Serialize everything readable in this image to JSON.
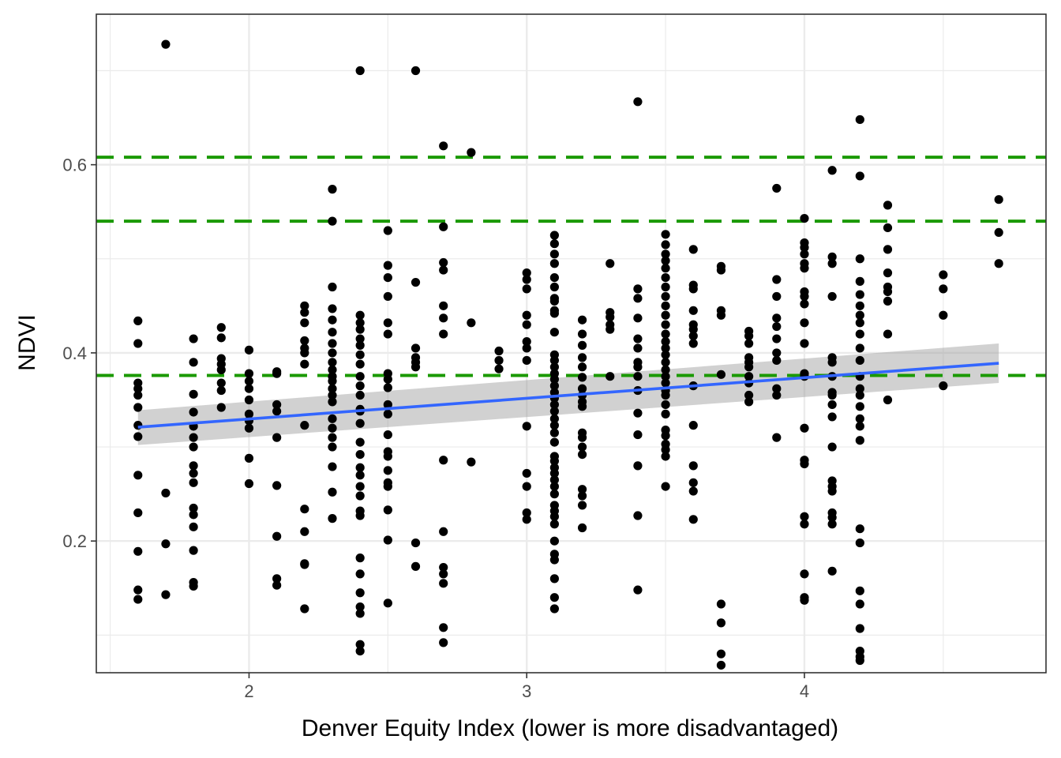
{
  "chart_data": {
    "type": "scatter",
    "title": "",
    "xlabel": "Denver Equity Index (lower is more disadvantaged)",
    "ylabel": "NDVI",
    "xlim": [
      1.45,
      4.87
    ],
    "ylim": [
      0.06,
      0.76
    ],
    "x_ticks": [
      2,
      3,
      4
    ],
    "x_tick_labels": [
      "2",
      "3",
      "4"
    ],
    "y_ticks": [
      0.2,
      0.4,
      0.6
    ],
    "y_tick_labels": [
      "0.2",
      "0.4",
      "0.6"
    ],
    "x_minor": [
      1.5,
      2.5,
      3.5,
      4.5
    ],
    "y_minor": [
      0.1,
      0.3,
      0.5,
      0.7
    ],
    "grid": true,
    "legend": "none",
    "colors": {
      "points": "#000000",
      "fit_line": "#3366ff",
      "ribbon": "#999999",
      "hlines": "#1a9900",
      "grid": "#ebebeb",
      "panel_border": "#333333"
    },
    "hlines": [
      0.608,
      0.54,
      0.376
    ],
    "fit": {
      "x": [
        1.6,
        4.7
      ],
      "y": [
        0.321,
        0.389
      ],
      "se_lower": [
        0.302,
        0.368
      ],
      "se_upper": [
        0.339,
        0.41
      ]
    },
    "points": [
      [
        1.6,
        0.434
      ],
      [
        1.6,
        0.41
      ],
      [
        1.6,
        0.368
      ],
      [
        1.6,
        0.362
      ],
      [
        1.6,
        0.355
      ],
      [
        1.6,
        0.342
      ],
      [
        1.6,
        0.323
      ],
      [
        1.6,
        0.311
      ],
      [
        1.6,
        0.27
      ],
      [
        1.6,
        0.23
      ],
      [
        1.6,
        0.189
      ],
      [
        1.6,
        0.148
      ],
      [
        1.6,
        0.138
      ],
      [
        1.7,
        0.728
      ],
      [
        1.7,
        0.251
      ],
      [
        1.7,
        0.197
      ],
      [
        1.7,
        0.143
      ],
      [
        1.8,
        0.415
      ],
      [
        1.8,
        0.39
      ],
      [
        1.8,
        0.356
      ],
      [
        1.8,
        0.337
      ],
      [
        1.8,
        0.322
      ],
      [
        1.8,
        0.31
      ],
      [
        1.8,
        0.3
      ],
      [
        1.8,
        0.28
      ],
      [
        1.8,
        0.272
      ],
      [
        1.8,
        0.262
      ],
      [
        1.8,
        0.235
      ],
      [
        1.8,
        0.228
      ],
      [
        1.8,
        0.215
      ],
      [
        1.8,
        0.19
      ],
      [
        1.8,
        0.156
      ],
      [
        1.8,
        0.152
      ],
      [
        1.9,
        0.427
      ],
      [
        1.9,
        0.416
      ],
      [
        1.9,
        0.394
      ],
      [
        1.9,
        0.388
      ],
      [
        1.9,
        0.382
      ],
      [
        1.9,
        0.368
      ],
      [
        1.9,
        0.36
      ],
      [
        1.9,
        0.342
      ],
      [
        2.0,
        0.403
      ],
      [
        2.0,
        0.378
      ],
      [
        2.0,
        0.37
      ],
      [
        2.0,
        0.362
      ],
      [
        2.0,
        0.35
      ],
      [
        2.0,
        0.335
      ],
      [
        2.0,
        0.328
      ],
      [
        2.0,
        0.32
      ],
      [
        2.0,
        0.288
      ],
      [
        2.0,
        0.261
      ],
      [
        2.1,
        0.38
      ],
      [
        2.1,
        0.378
      ],
      [
        2.1,
        0.345
      ],
      [
        2.1,
        0.338
      ],
      [
        2.1,
        0.31
      ],
      [
        2.1,
        0.259
      ],
      [
        2.1,
        0.205
      ],
      [
        2.1,
        0.16
      ],
      [
        2.1,
        0.153
      ],
      [
        2.2,
        0.45
      ],
      [
        2.2,
        0.443
      ],
      [
        2.2,
        0.432
      ],
      [
        2.2,
        0.413
      ],
      [
        2.2,
        0.405
      ],
      [
        2.2,
        0.4
      ],
      [
        2.2,
        0.388
      ],
      [
        2.2,
        0.323
      ],
      [
        2.2,
        0.234
      ],
      [
        2.2,
        0.21
      ],
      [
        2.2,
        0.176
      ],
      [
        2.2,
        0.175
      ],
      [
        2.2,
        0.128
      ],
      [
        2.3,
        0.574
      ],
      [
        2.3,
        0.54
      ],
      [
        2.3,
        0.47
      ],
      [
        2.3,
        0.447
      ],
      [
        2.3,
        0.435
      ],
      [
        2.3,
        0.422
      ],
      [
        2.3,
        0.41
      ],
      [
        2.3,
        0.4
      ],
      [
        2.3,
        0.39
      ],
      [
        2.3,
        0.382
      ],
      [
        2.3,
        0.375
      ],
      [
        2.3,
        0.37
      ],
      [
        2.3,
        0.362
      ],
      [
        2.3,
        0.355
      ],
      [
        2.3,
        0.348
      ],
      [
        2.3,
        0.33
      ],
      [
        2.3,
        0.32
      ],
      [
        2.3,
        0.31
      ],
      [
        2.3,
        0.3
      ],
      [
        2.3,
        0.279
      ],
      [
        2.3,
        0.252
      ],
      [
        2.3,
        0.224
      ],
      [
        2.4,
        0.7
      ],
      [
        2.4,
        0.44
      ],
      [
        2.4,
        0.432
      ],
      [
        2.4,
        0.425
      ],
      [
        2.4,
        0.415
      ],
      [
        2.4,
        0.408
      ],
      [
        2.4,
        0.398
      ],
      [
        2.4,
        0.388
      ],
      [
        2.4,
        0.375
      ],
      [
        2.4,
        0.365
      ],
      [
        2.4,
        0.355
      ],
      [
        2.4,
        0.34
      ],
      [
        2.4,
        0.338
      ],
      [
        2.4,
        0.325
      ],
      [
        2.4,
        0.305
      ],
      [
        2.4,
        0.292
      ],
      [
        2.4,
        0.278
      ],
      [
        2.4,
        0.27
      ],
      [
        2.4,
        0.258
      ],
      [
        2.4,
        0.248
      ],
      [
        2.4,
        0.232
      ],
      [
        2.4,
        0.227
      ],
      [
        2.4,
        0.182
      ],
      [
        2.4,
        0.165
      ],
      [
        2.4,
        0.145
      ],
      [
        2.4,
        0.13
      ],
      [
        2.4,
        0.123
      ],
      [
        2.4,
        0.09
      ],
      [
        2.4,
        0.083
      ],
      [
        2.5,
        0.53
      ],
      [
        2.5,
        0.493
      ],
      [
        2.5,
        0.48
      ],
      [
        2.5,
        0.46
      ],
      [
        2.5,
        0.432
      ],
      [
        2.5,
        0.42
      ],
      [
        2.5,
        0.378
      ],
      [
        2.5,
        0.372
      ],
      [
        2.5,
        0.363
      ],
      [
        2.5,
        0.345
      ],
      [
        2.5,
        0.335
      ],
      [
        2.5,
        0.313
      ],
      [
        2.5,
        0.295
      ],
      [
        2.5,
        0.29
      ],
      [
        2.5,
        0.275
      ],
      [
        2.5,
        0.262
      ],
      [
        2.5,
        0.258
      ],
      [
        2.5,
        0.233
      ],
      [
        2.5,
        0.201
      ],
      [
        2.5,
        0.134
      ],
      [
        2.6,
        0.7
      ],
      [
        2.6,
        0.475
      ],
      [
        2.6,
        0.405
      ],
      [
        2.6,
        0.395
      ],
      [
        2.6,
        0.39
      ],
      [
        2.6,
        0.385
      ],
      [
        2.6,
        0.198
      ],
      [
        2.6,
        0.173
      ],
      [
        2.7,
        0.62
      ],
      [
        2.7,
        0.534
      ],
      [
        2.7,
        0.496
      ],
      [
        2.7,
        0.488
      ],
      [
        2.7,
        0.45
      ],
      [
        2.7,
        0.437
      ],
      [
        2.7,
        0.42
      ],
      [
        2.7,
        0.286
      ],
      [
        2.7,
        0.21
      ],
      [
        2.7,
        0.172
      ],
      [
        2.7,
        0.165
      ],
      [
        2.7,
        0.155
      ],
      [
        2.7,
        0.108
      ],
      [
        2.7,
        0.092
      ],
      [
        2.8,
        0.613
      ],
      [
        2.8,
        0.432
      ],
      [
        2.8,
        0.284
      ],
      [
        2.9,
        0.402
      ],
      [
        2.9,
        0.392
      ],
      [
        2.9,
        0.383
      ],
      [
        3.0,
        0.485
      ],
      [
        3.0,
        0.478
      ],
      [
        3.0,
        0.468
      ],
      [
        3.0,
        0.44
      ],
      [
        3.0,
        0.43
      ],
      [
        3.0,
        0.412
      ],
      [
        3.0,
        0.405
      ],
      [
        3.0,
        0.392
      ],
      [
        3.0,
        0.322
      ],
      [
        3.0,
        0.272
      ],
      [
        3.0,
        0.258
      ],
      [
        3.0,
        0.23
      ],
      [
        3.0,
        0.223
      ],
      [
        3.1,
        0.525
      ],
      [
        3.1,
        0.516
      ],
      [
        3.1,
        0.505
      ],
      [
        3.1,
        0.495
      ],
      [
        3.1,
        0.48
      ],
      [
        3.1,
        0.47
      ],
      [
        3.1,
        0.458
      ],
      [
        3.1,
        0.455
      ],
      [
        3.1,
        0.445
      ],
      [
        3.1,
        0.442
      ],
      [
        3.1,
        0.422
      ],
      [
        3.1,
        0.398
      ],
      [
        3.1,
        0.392
      ],
      [
        3.1,
        0.385
      ],
      [
        3.1,
        0.378
      ],
      [
        3.1,
        0.372
      ],
      [
        3.1,
        0.365
      ],
      [
        3.1,
        0.358
      ],
      [
        3.1,
        0.352
      ],
      [
        3.1,
        0.345
      ],
      [
        3.1,
        0.338
      ],
      [
        3.1,
        0.33
      ],
      [
        3.1,
        0.323
      ],
      [
        3.1,
        0.315
      ],
      [
        3.1,
        0.305
      ],
      [
        3.1,
        0.29
      ],
      [
        3.1,
        0.285
      ],
      [
        3.1,
        0.278
      ],
      [
        3.1,
        0.272
      ],
      [
        3.1,
        0.265
      ],
      [
        3.1,
        0.258
      ],
      [
        3.1,
        0.25
      ],
      [
        3.1,
        0.238
      ],
      [
        3.1,
        0.232
      ],
      [
        3.1,
        0.226
      ],
      [
        3.1,
        0.218
      ],
      [
        3.1,
        0.2
      ],
      [
        3.1,
        0.186
      ],
      [
        3.1,
        0.18
      ],
      [
        3.1,
        0.16
      ],
      [
        3.1,
        0.14
      ],
      [
        3.1,
        0.128
      ],
      [
        3.2,
        0.435
      ],
      [
        3.2,
        0.42
      ],
      [
        3.2,
        0.408
      ],
      [
        3.2,
        0.395
      ],
      [
        3.2,
        0.385
      ],
      [
        3.2,
        0.374
      ],
      [
        3.2,
        0.362
      ],
      [
        3.2,
        0.355
      ],
      [
        3.2,
        0.348
      ],
      [
        3.2,
        0.343
      ],
      [
        3.2,
        0.315
      ],
      [
        3.2,
        0.31
      ],
      [
        3.2,
        0.3
      ],
      [
        3.2,
        0.292
      ],
      [
        3.2,
        0.255
      ],
      [
        3.2,
        0.248
      ],
      [
        3.2,
        0.238
      ],
      [
        3.2,
        0.214
      ],
      [
        3.3,
        0.495
      ],
      [
        3.3,
        0.443
      ],
      [
        3.3,
        0.438
      ],
      [
        3.3,
        0.43
      ],
      [
        3.3,
        0.425
      ],
      [
        3.3,
        0.375
      ],
      [
        3.4,
        0.667
      ],
      [
        3.4,
        0.468
      ],
      [
        3.4,
        0.458
      ],
      [
        3.4,
        0.437
      ],
      [
        3.4,
        0.415
      ],
      [
        3.4,
        0.405
      ],
      [
        3.4,
        0.39
      ],
      [
        3.4,
        0.385
      ],
      [
        3.4,
        0.375
      ],
      [
        3.4,
        0.36
      ],
      [
        3.4,
        0.336
      ],
      [
        3.4,
        0.313
      ],
      [
        3.4,
        0.28
      ],
      [
        3.4,
        0.227
      ],
      [
        3.4,
        0.148
      ],
      [
        3.5,
        0.526
      ],
      [
        3.5,
        0.515
      ],
      [
        3.5,
        0.505
      ],
      [
        3.5,
        0.498
      ],
      [
        3.5,
        0.49
      ],
      [
        3.5,
        0.48
      ],
      [
        3.5,
        0.47
      ],
      [
        3.5,
        0.46
      ],
      [
        3.5,
        0.45
      ],
      [
        3.5,
        0.44
      ],
      [
        3.5,
        0.43
      ],
      [
        3.5,
        0.42
      ],
      [
        3.5,
        0.412
      ],
      [
        3.5,
        0.405
      ],
      [
        3.5,
        0.398
      ],
      [
        3.5,
        0.39
      ],
      [
        3.5,
        0.382
      ],
      [
        3.5,
        0.375
      ],
      [
        3.5,
        0.368
      ],
      [
        3.5,
        0.36
      ],
      [
        3.5,
        0.355
      ],
      [
        3.5,
        0.345
      ],
      [
        3.5,
        0.335
      ],
      [
        3.5,
        0.318
      ],
      [
        3.5,
        0.312
      ],
      [
        3.5,
        0.303
      ],
      [
        3.5,
        0.297
      ],
      [
        3.5,
        0.29
      ],
      [
        3.5,
        0.258
      ],
      [
        3.6,
        0.51
      ],
      [
        3.6,
        0.472
      ],
      [
        3.6,
        0.468
      ],
      [
        3.6,
        0.445
      ],
      [
        3.6,
        0.43
      ],
      [
        3.6,
        0.425
      ],
      [
        3.6,
        0.418
      ],
      [
        3.6,
        0.41
      ],
      [
        3.6,
        0.365
      ],
      [
        3.6,
        0.323
      ],
      [
        3.6,
        0.28
      ],
      [
        3.6,
        0.262
      ],
      [
        3.6,
        0.253
      ],
      [
        3.6,
        0.223
      ],
      [
        3.7,
        0.492
      ],
      [
        3.7,
        0.488
      ],
      [
        3.7,
        0.445
      ],
      [
        3.7,
        0.44
      ],
      [
        3.7,
        0.377
      ],
      [
        3.7,
        0.133
      ],
      [
        3.7,
        0.113
      ],
      [
        3.7,
        0.08
      ],
      [
        3.7,
        0.068
      ],
      [
        3.8,
        0.423
      ],
      [
        3.8,
        0.418
      ],
      [
        3.8,
        0.41
      ],
      [
        3.8,
        0.395
      ],
      [
        3.8,
        0.39
      ],
      [
        3.8,
        0.385
      ],
      [
        3.8,
        0.375
      ],
      [
        3.8,
        0.368
      ],
      [
        3.8,
        0.355
      ],
      [
        3.8,
        0.348
      ],
      [
        3.9,
        0.575
      ],
      [
        3.9,
        0.478
      ],
      [
        3.9,
        0.46
      ],
      [
        3.9,
        0.437
      ],
      [
        3.9,
        0.428
      ],
      [
        3.9,
        0.415
      ],
      [
        3.9,
        0.4
      ],
      [
        3.9,
        0.392
      ],
      [
        3.9,
        0.362
      ],
      [
        3.9,
        0.355
      ],
      [
        3.9,
        0.31
      ],
      [
        4.0,
        0.543
      ],
      [
        4.0,
        0.517
      ],
      [
        4.0,
        0.512
      ],
      [
        4.0,
        0.505
      ],
      [
        4.0,
        0.495
      ],
      [
        4.0,
        0.49
      ],
      [
        4.0,
        0.465
      ],
      [
        4.0,
        0.46
      ],
      [
        4.0,
        0.452
      ],
      [
        4.0,
        0.432
      ],
      [
        4.0,
        0.41
      ],
      [
        4.0,
        0.378
      ],
      [
        4.0,
        0.375
      ],
      [
        4.0,
        0.32
      ],
      [
        4.0,
        0.286
      ],
      [
        4.0,
        0.282
      ],
      [
        4.0,
        0.226
      ],
      [
        4.0,
        0.218
      ],
      [
        4.0,
        0.165
      ],
      [
        4.0,
        0.14
      ],
      [
        4.0,
        0.137
      ],
      [
        4.1,
        0.594
      ],
      [
        4.1,
        0.502
      ],
      [
        4.1,
        0.495
      ],
      [
        4.1,
        0.46
      ],
      [
        4.1,
        0.395
      ],
      [
        4.1,
        0.39
      ],
      [
        4.1,
        0.375
      ],
      [
        4.1,
        0.358
      ],
      [
        4.1,
        0.355
      ],
      [
        4.1,
        0.345
      ],
      [
        4.1,
        0.332
      ],
      [
        4.1,
        0.3
      ],
      [
        4.1,
        0.264
      ],
      [
        4.1,
        0.258
      ],
      [
        4.1,
        0.253
      ],
      [
        4.1,
        0.23
      ],
      [
        4.1,
        0.225
      ],
      [
        4.1,
        0.218
      ],
      [
        4.1,
        0.168
      ],
      [
        4.2,
        0.648
      ],
      [
        4.2,
        0.588
      ],
      [
        4.2,
        0.5
      ],
      [
        4.2,
        0.476
      ],
      [
        4.2,
        0.462
      ],
      [
        4.2,
        0.45
      ],
      [
        4.2,
        0.44
      ],
      [
        4.2,
        0.432
      ],
      [
        4.2,
        0.42
      ],
      [
        4.2,
        0.405
      ],
      [
        4.2,
        0.392
      ],
      [
        4.2,
        0.375
      ],
      [
        4.2,
        0.362
      ],
      [
        4.2,
        0.355
      ],
      [
        4.2,
        0.343
      ],
      [
        4.2,
        0.33
      ],
      [
        4.2,
        0.322
      ],
      [
        4.2,
        0.307
      ],
      [
        4.2,
        0.213
      ],
      [
        4.2,
        0.198
      ],
      [
        4.2,
        0.147
      ],
      [
        4.2,
        0.133
      ],
      [
        4.2,
        0.107
      ],
      [
        4.2,
        0.083
      ],
      [
        4.2,
        0.077
      ],
      [
        4.2,
        0.073
      ],
      [
        4.3,
        0.557
      ],
      [
        4.3,
        0.533
      ],
      [
        4.3,
        0.51
      ],
      [
        4.3,
        0.485
      ],
      [
        4.3,
        0.47
      ],
      [
        4.3,
        0.465
      ],
      [
        4.3,
        0.455
      ],
      [
        4.3,
        0.42
      ],
      [
        4.3,
        0.35
      ],
      [
        4.5,
        0.483
      ],
      [
        4.5,
        0.468
      ],
      [
        4.5,
        0.44
      ],
      [
        4.5,
        0.365
      ],
      [
        4.7,
        0.563
      ],
      [
        4.7,
        0.528
      ],
      [
        4.7,
        0.495
      ]
    ]
  }
}
